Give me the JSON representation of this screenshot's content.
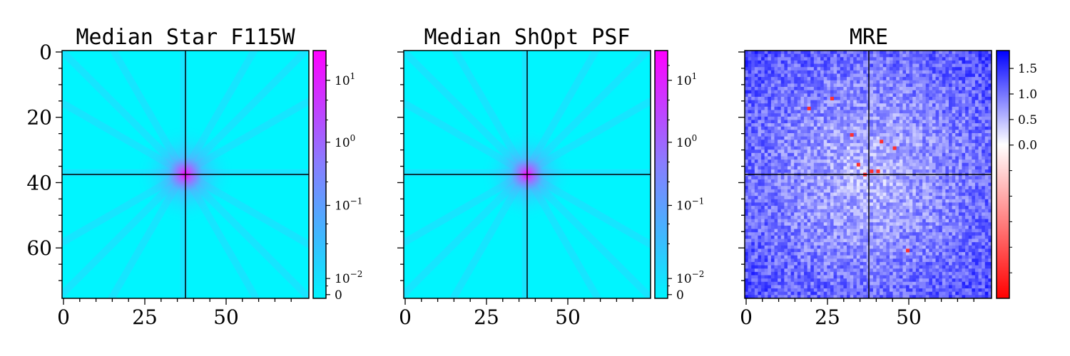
{
  "chart_data": [
    {
      "type": "heatmap",
      "title": "Median Star F115W",
      "x_ticks": [
        "0",
        "25",
        "50"
      ],
      "y_ticks": [
        "0",
        "20",
        "40",
        "60"
      ],
      "xlim": [
        0,
        75
      ],
      "ylim": [
        75,
        0
      ],
      "center": [
        37,
        37
      ],
      "colormap": [
        "#00f5ff",
        "#ff00ff"
      ],
      "colorbar": {
        "scale": "symlog",
        "ticks": [
          {
            "base": "10",
            "exp": "1"
          },
          {
            "base": "10",
            "exp": "0"
          },
          {
            "base": "10",
            "exp": "−1"
          },
          {
            "base": "10",
            "exp": "−2"
          },
          {
            "base": "0",
            "exp": ""
          }
        ]
      }
    },
    {
      "type": "heatmap",
      "title": "Median ShOpt PSF",
      "x_ticks": [
        "0",
        "25",
        "50"
      ],
      "y_ticks": [],
      "xlim": [
        0,
        75
      ],
      "ylim": [
        75,
        0
      ],
      "center": [
        37,
        37
      ],
      "colormap": [
        "#00f5ff",
        "#ff00ff"
      ],
      "colorbar": {
        "scale": "symlog",
        "ticks": [
          {
            "base": "10",
            "exp": "1"
          },
          {
            "base": "10",
            "exp": "0"
          },
          {
            "base": "10",
            "exp": "−1"
          },
          {
            "base": "10",
            "exp": "−2"
          },
          {
            "base": "0",
            "exp": ""
          }
        ]
      }
    },
    {
      "type": "heatmap",
      "title": "MRE",
      "x_ticks": [
        "0",
        "25",
        "50"
      ],
      "y_ticks": [],
      "xlim": [
        0,
        75
      ],
      "ylim": [
        75,
        0
      ],
      "center": [
        37,
        37
      ],
      "colormap": [
        "#ff0000",
        "#ffffff",
        "#0000ff"
      ],
      "colorbar": {
        "scale": "linear",
        "range": [
          -3,
          1.85
        ],
        "ticks": [
          "1.5",
          "1.0",
          "0.5",
          "0.0"
        ]
      }
    }
  ]
}
